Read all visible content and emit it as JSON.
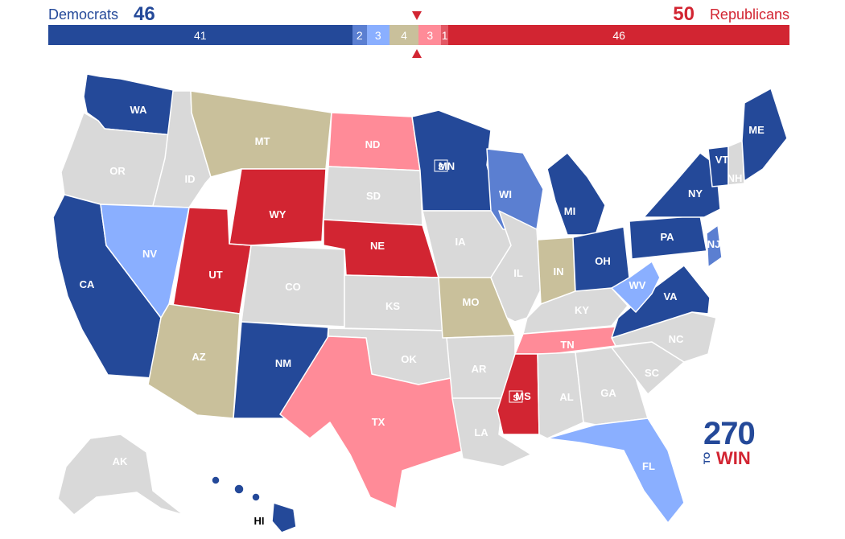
{
  "header": {
    "dem_label": "Democrats",
    "dem_total": "46",
    "rep_total": "50",
    "rep_label": "Republicans"
  },
  "colors": {
    "safe_d": "#244999",
    "likely_d": "#5b7fd1",
    "lean_d": "#8aafff",
    "tossup": "#c9c09b",
    "lean_r": "#ff8b98",
    "likely_r": "#e35864",
    "safe_r": "#d22532",
    "no_race": "#d9d9d9"
  },
  "bar": [
    {
      "label": "41",
      "seats": 41,
      "category": "safe_d"
    },
    {
      "label": "2",
      "seats": 2,
      "category": "likely_d"
    },
    {
      "label": "3",
      "seats": 3,
      "category": "lean_d"
    },
    {
      "label": "4",
      "seats": 4,
      "category": "tossup"
    },
    {
      "label": "3",
      "seats": 3,
      "category": "lean_r"
    },
    {
      "label": "1",
      "seats": 1,
      "category": "likely_r"
    },
    {
      "label": "46",
      "seats": 46,
      "category": "safe_r"
    }
  ],
  "states": [
    {
      "abbr": "WA",
      "category": "safe_d"
    },
    {
      "abbr": "OR",
      "category": "no_race"
    },
    {
      "abbr": "CA",
      "category": "safe_d"
    },
    {
      "abbr": "ID",
      "category": "no_race"
    },
    {
      "abbr": "NV",
      "category": "lean_d"
    },
    {
      "abbr": "UT",
      "category": "safe_r"
    },
    {
      "abbr": "AZ",
      "category": "tossup"
    },
    {
      "abbr": "MT",
      "category": "tossup"
    },
    {
      "abbr": "WY",
      "category": "safe_r"
    },
    {
      "abbr": "CO",
      "category": "no_race"
    },
    {
      "abbr": "NM",
      "category": "safe_d"
    },
    {
      "abbr": "ND",
      "category": "lean_r"
    },
    {
      "abbr": "SD",
      "category": "no_race"
    },
    {
      "abbr": "NE",
      "category": "safe_r"
    },
    {
      "abbr": "KS",
      "category": "no_race"
    },
    {
      "abbr": "OK",
      "category": "no_race"
    },
    {
      "abbr": "TX",
      "category": "lean_r"
    },
    {
      "abbr": "MN",
      "category": "safe_d"
    },
    {
      "abbr": "IA",
      "category": "no_race"
    },
    {
      "abbr": "MO",
      "category": "tossup"
    },
    {
      "abbr": "AR",
      "category": "no_race"
    },
    {
      "abbr": "LA",
      "category": "no_race"
    },
    {
      "abbr": "WI",
      "category": "likely_d"
    },
    {
      "abbr": "IL",
      "category": "no_race"
    },
    {
      "abbr": "MI",
      "category": "safe_d"
    },
    {
      "abbr": "IN",
      "category": "tossup"
    },
    {
      "abbr": "OH",
      "category": "safe_d"
    },
    {
      "abbr": "KY",
      "category": "no_race"
    },
    {
      "abbr": "TN",
      "category": "lean_r"
    },
    {
      "abbr": "MS",
      "category": "safe_r"
    },
    {
      "abbr": "AL",
      "category": "no_race"
    },
    {
      "abbr": "GA",
      "category": "no_race"
    },
    {
      "abbr": "FL",
      "category": "lean_d"
    },
    {
      "abbr": "SC",
      "category": "no_race"
    },
    {
      "abbr": "NC",
      "category": "no_race"
    },
    {
      "abbr": "VA",
      "category": "safe_d"
    },
    {
      "abbr": "WV",
      "category": "lean_d"
    },
    {
      "abbr": "PA",
      "category": "safe_d"
    },
    {
      "abbr": "NY",
      "category": "safe_d"
    },
    {
      "abbr": "VT",
      "category": "safe_d"
    },
    {
      "abbr": "NH",
      "category": "no_race"
    },
    {
      "abbr": "ME",
      "category": "safe_d"
    },
    {
      "abbr": "NJ",
      "category": "likely_d"
    },
    {
      "abbr": "AK",
      "category": "no_race"
    },
    {
      "abbr": "HI",
      "category": "safe_d"
    }
  ],
  "special_badge_label": "S",
  "logo": {
    "number": "270",
    "to": "TO",
    "win": "WIN"
  }
}
